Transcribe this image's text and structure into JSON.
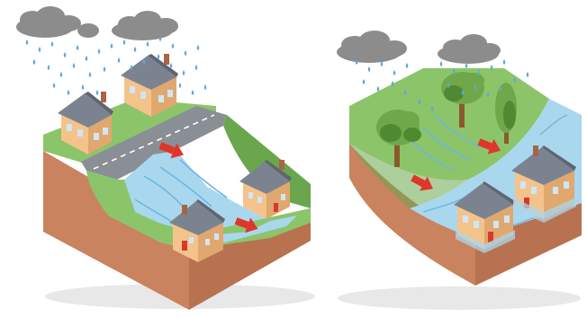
{
  "scenes": [
    {
      "id": "urban-runoff",
      "ground": "paved-road-and-houses",
      "water": "surface-runoff-channel",
      "flow_arrows": 2
    },
    {
      "id": "vegetated-slope-flood",
      "ground": "grass-slope-with-trees",
      "water": "flooded-lowland",
      "flow_arrows": 2
    }
  ],
  "colors": {
    "cloud": "#8c8c8c",
    "cloud_dark": "#6e6e6e",
    "rain": "#5aa9e0",
    "grass": "#8cc46a",
    "grass_dark": "#6aa64c",
    "soil": "#c9835f",
    "soil_dark": "#a66546",
    "soil_side": "#b8724f",
    "road": "#8a8f96",
    "road_line": "#ffffff",
    "water": "#a9d7ee",
    "water_dark": "#6fb6de",
    "house_wall": "#f4c38b",
    "house_wall_shade": "#e0a86e",
    "roof": "#7c8390",
    "roof_dark": "#5f6571",
    "window": "#cfe6f6",
    "door": "#d9382b",
    "arrow": "#e0352b",
    "tree_leaf": "#6fa84a",
    "tree_leaf_dark": "#4f8a32",
    "trunk": "#8a5a2e",
    "shadow": "#cccccc"
  },
  "icons": {
    "rain-cloud": "cloud-icon",
    "rain-drop": "raindrop-icon",
    "flow-arrow": "arrow-icon",
    "house": "house-icon",
    "tree": "tree-icon"
  }
}
